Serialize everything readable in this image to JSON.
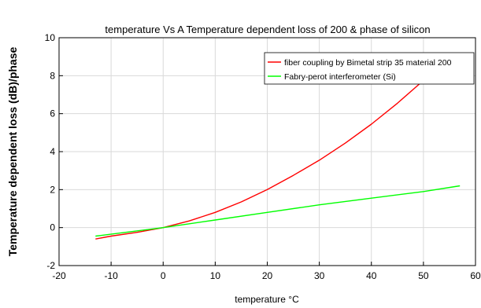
{
  "chart_data": {
    "type": "line",
    "title": "temperature Vs  A Temperature dependent loss of 200 & phase of silicon",
    "xlabel": "temperature °C",
    "ylabel": "Temperature dependent loss (dB)/phase",
    "xlim": [
      -20,
      60
    ],
    "ylim": [
      -2,
      10
    ],
    "xticks": [
      "-20",
      "-10",
      "0",
      "10",
      "20",
      "30",
      "40",
      "50",
      "60"
    ],
    "yticks": [
      "-2",
      "0",
      "2",
      "4",
      "6",
      "8",
      "10"
    ],
    "grid": true,
    "legend_position": "top-right",
    "series": [
      {
        "name": "fiber coupling by Bimetal strip 35 material 200",
        "color": "#ff0000",
        "x": [
          -13,
          -10,
          -5,
          0,
          5,
          10,
          15,
          20,
          25,
          30,
          35,
          40,
          45,
          50,
          52
        ],
        "y": [
          -0.6,
          -0.45,
          -0.25,
          0,
          0.35,
          0.8,
          1.35,
          2.0,
          2.75,
          3.55,
          4.45,
          5.45,
          6.55,
          7.75,
          8.25
        ]
      },
      {
        "name": "Fabry-perot interferometer (Si)",
        "color": "#00ff00",
        "x": [
          -13,
          0,
          10,
          20,
          30,
          40,
          50,
          57
        ],
        "y": [
          -0.45,
          0,
          0.4,
          0.8,
          1.2,
          1.55,
          1.9,
          2.2
        ]
      }
    ]
  }
}
